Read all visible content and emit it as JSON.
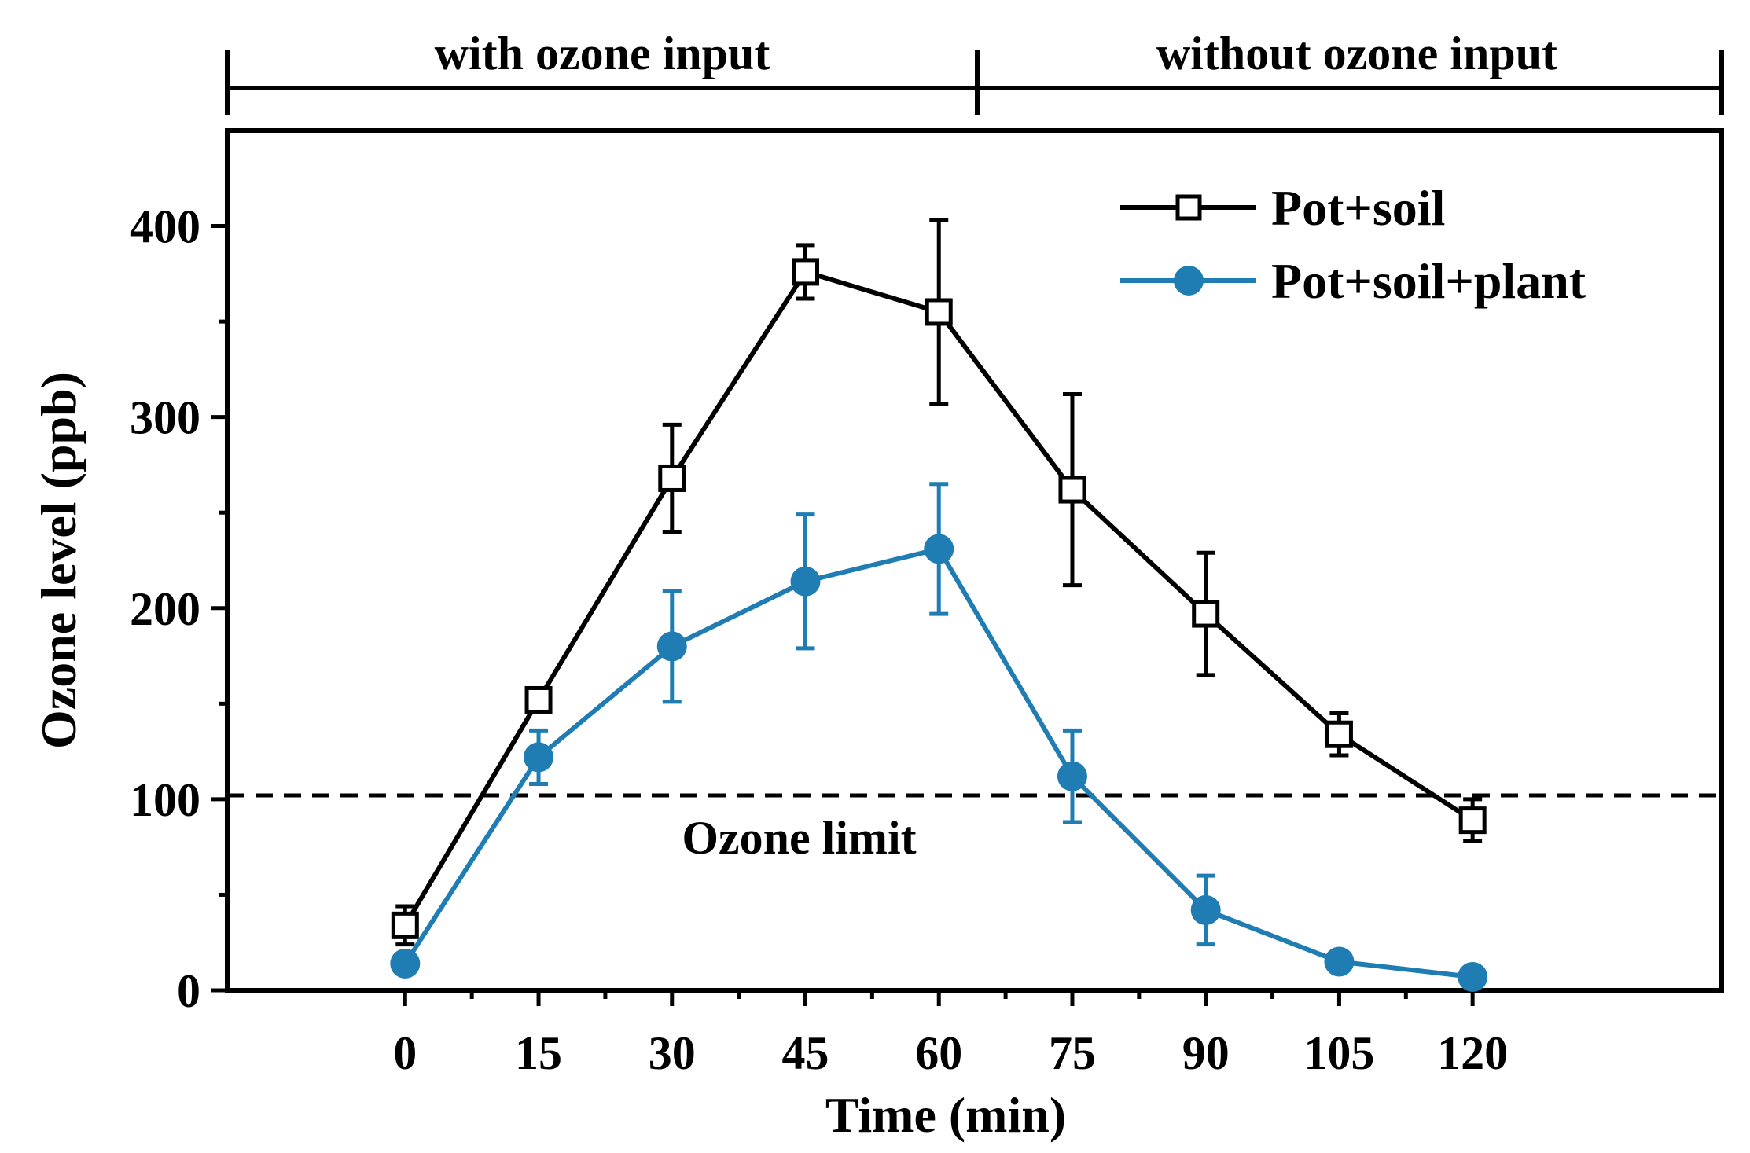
{
  "chart_data": {
    "type": "line",
    "title": "",
    "xlabel": "Time (min)",
    "ylabel": "Ozone level (ppb)",
    "xlim": [
      -20,
      148
    ],
    "ylim": [
      0,
      450
    ],
    "x": [
      0,
      15,
      30,
      45,
      60,
      75,
      90,
      105,
      120
    ],
    "x_tick_labels": [
      "0",
      "15",
      "30",
      "45",
      "60",
      "75",
      "90",
      "105",
      "120"
    ],
    "y_ticks": [
      0,
      100,
      200,
      300,
      400
    ],
    "y_tick_labels": [
      "0",
      "100",
      "200",
      "300",
      "400"
    ],
    "y_minor_ticks": [
      50,
      150,
      250,
      350
    ],
    "series": [
      {
        "name": "Pot+soil",
        "color": "#000000",
        "marker": "open-square",
        "values": [
          34,
          152,
          268,
          376,
          355,
          262,
          197,
          134,
          89
        ],
        "errors": [
          10,
          5,
          28,
          14,
          48,
          50,
          32,
          11,
          11
        ]
      },
      {
        "name": "Pot+soil+plant",
        "color": "#1f7db4",
        "marker": "filled-circle",
        "values": [
          14,
          122,
          180,
          214,
          231,
          112,
          42,
          15,
          7
        ],
        "errors": [
          4,
          14,
          29,
          35,
          34,
          24,
          18,
          3,
          2
        ]
      }
    ],
    "reference_line": {
      "y": 102,
      "label": "Ozone limit",
      "style": "dashed"
    },
    "phases": [
      {
        "label": "with ozone input",
        "x_start": -20,
        "x_end": 60
      },
      {
        "label": "without ozone input",
        "x_start": 60,
        "x_end": 148
      }
    ],
    "legend": {
      "position": "top-right"
    }
  }
}
